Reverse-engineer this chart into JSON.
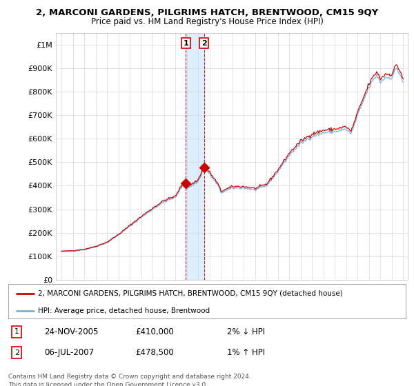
{
  "title": "2, MARCONI GARDENS, PILGRIMS HATCH, BRENTWOOD, CM15 9QY",
  "subtitle": "Price paid vs. HM Land Registry's House Price Index (HPI)",
  "ylim": [
    0,
    1050000
  ],
  "yticks": [
    0,
    100000,
    200000,
    300000,
    400000,
    500000,
    600000,
    700000,
    800000,
    900000,
    1000000
  ],
  "ytick_labels": [
    "£0",
    "£100K",
    "£200K",
    "£300K",
    "£400K",
    "£500K",
    "£600K",
    "£700K",
    "£800K",
    "£900K",
    "£1M"
  ],
  "legend_line1": "2, MARCONI GARDENS, PILGRIMS HATCH, BRENTWOOD, CM15 9QY (detached house)",
  "legend_line2": "HPI: Average price, detached house, Brentwood",
  "sale1_date": "24-NOV-2005",
  "sale1_price": 410000,
  "sale1_pct": "2% ↓ HPI",
  "sale2_date": "06-JUL-2007",
  "sale2_price": 478500,
  "sale2_pct": "1% ↑ HPI",
  "footer": "Contains HM Land Registry data © Crown copyright and database right 2024.\nThis data is licensed under the Open Government Licence v3.0.",
  "line_color_red": "#cc0000",
  "line_color_blue": "#7ab0d4",
  "background_color": "#ffffff",
  "grid_color": "#d8d8d8",
  "sale1_x": 2005.9,
  "sale2_x": 2007.5,
  "title_fontsize": 9.5,
  "subtitle_fontsize": 8.5,
  "shade_color": "#ddeeff"
}
